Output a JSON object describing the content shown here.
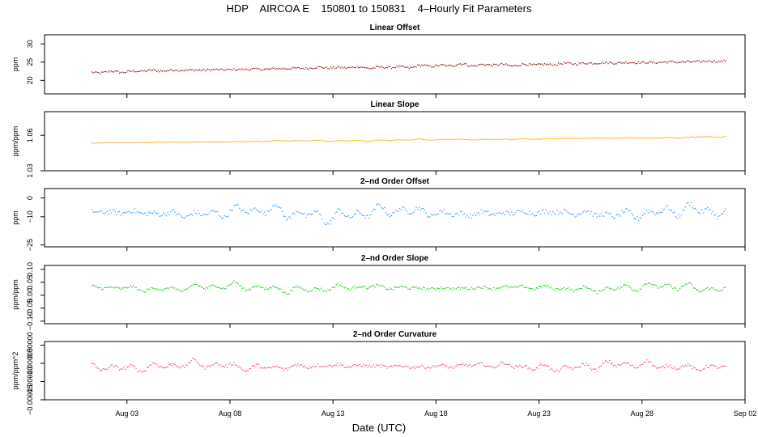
{
  "page": {
    "title": "HDP    AIRCOA E    150801 to 150831    4–Hourly Fit Parameters",
    "xlabel": "Date (UTC)"
  },
  "chart_data": {
    "type": "scatter",
    "x_axis": {
      "range": [
        "2015-07-30",
        "2015-09-02"
      ],
      "ticks": [
        {
          "date": "2015-08-03",
          "label": "Aug 03"
        },
        {
          "date": "2015-08-08",
          "label": "Aug 08"
        },
        {
          "date": "2015-08-13",
          "label": "Aug 13"
        },
        {
          "date": "2015-08-18",
          "label": "Aug 18"
        },
        {
          "date": "2015-08-23",
          "label": "Aug 23"
        },
        {
          "date": "2015-08-28",
          "label": "Aug 28"
        },
        {
          "date": "2015-09-02",
          "label": "Sep 02"
        }
      ],
      "data_range": [
        "2015-08-01",
        "2015-09-01"
      ]
    },
    "panels": [
      {
        "title": "Linear Offset",
        "ylabel": "ppm",
        "ylim": [
          16.3,
          32.5
        ],
        "yticks": [
          {
            "v": 20,
            "label": "20"
          },
          {
            "v": 25,
            "label": "25"
          },
          {
            "v": 30,
            "label": "30"
          }
        ],
        "color": "#8b0000",
        "trend": {
          "start": 22.3,
          "end": 25.3
        },
        "noise": 0.3,
        "wave": 0.35
      },
      {
        "title": "Linear Slope",
        "ylabel": "ppm/ppm",
        "ylim": [
          1.03,
          1.08
        ],
        "yticks": [
          {
            "v": 1.03,
            "label": "1.03"
          },
          {
            "v": 1.06,
            "label": "1.06"
          }
        ],
        "color": "#ffa500",
        "trend": {
          "start": 1.0535,
          "end": 1.0585
        },
        "noise": 0.0003,
        "wave": 0.0006
      },
      {
        "title": "2–nd Order Offset",
        "ylabel": "ppm",
        "ylim": [
          -26,
          5
        ],
        "yticks": [
          {
            "v": 0,
            "label": "0"
          },
          {
            "v": -10,
            "label": "−10"
          },
          {
            "v": -25,
            "label": "−25"
          }
        ],
        "color": "#1e90ff",
        "trend": {
          "start": -8,
          "end": -8
        },
        "noise": 1.2,
        "wave": 4
      },
      {
        "title": "2–nd Order Slope",
        "ylabel": "ppm/ppm",
        "ylim": [
          -0.11,
          0.115
        ],
        "yticks": [
          {
            "v": 0.1,
            "label": "0.10"
          },
          {
            "v": 0.05,
            "label": "0.05"
          },
          {
            "v": 0,
            "label": "0.00"
          },
          {
            "v": -0.05,
            "label": "−0.05"
          },
          {
            "v": -0.1,
            "label": "−0.10"
          }
        ],
        "color": "#00cc00",
        "trend": {
          "start": 0.028,
          "end": 0.028
        },
        "noise": 0.005,
        "wave": 0.016
      },
      {
        "title": "2–nd Order Curvature",
        "ylabel": "ppm/ppm^2",
        "ylim": [
          -0.00015,
          1e-05
        ],
        "yticks": [
          {
            "v": 0,
            "label": "0.00000"
          },
          {
            "v": -5e-05,
            "label": "−0.00005"
          },
          {
            "v": -0.0001,
            "label": "−0.00010"
          },
          {
            "v": -0.00015,
            "label": "−0.00015"
          }
        ],
        "color": "#ff3366",
        "trend": {
          "start": -5.8e-05,
          "end": -5.8e-05
        },
        "noise": 4e-06,
        "wave": 1.2e-05
      }
    ],
    "points_per_panel": 460,
    "grid": false,
    "legend": "none"
  }
}
